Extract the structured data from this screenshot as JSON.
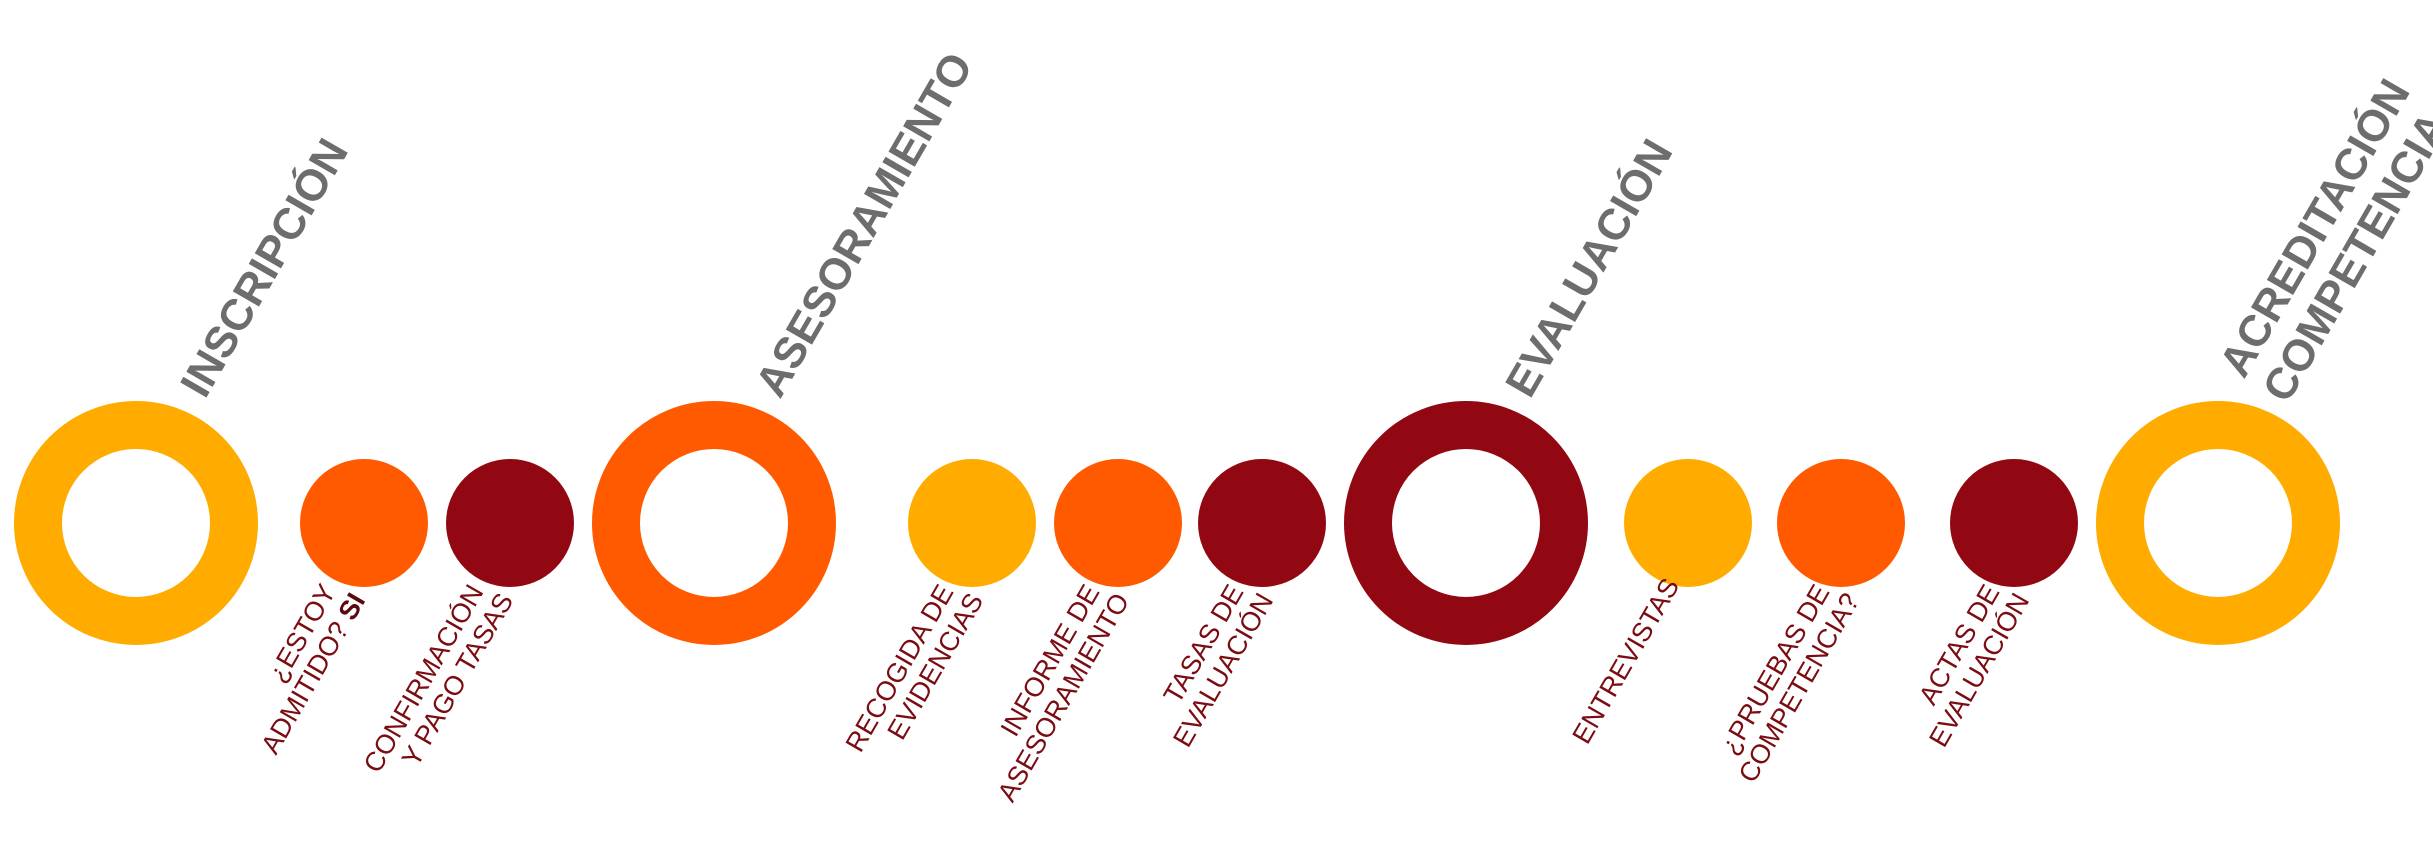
{
  "colors": {
    "yellow": "#ffab00",
    "orange": "#ff5a00",
    "darkred": "#920812",
    "title": "#6d6d6d",
    "label": "#7a0c12"
  },
  "phases": [
    {
      "title": "INSCRIPCIÓN",
      "color": "yellow"
    },
    {
      "title": "ASESORAMIENTO",
      "color": "orange"
    },
    {
      "title": "EVALUACIÓN",
      "color": "darkred"
    },
    {
      "title_lines": [
        "ACREDITACIÓN",
        "COMPETENCIA"
      ],
      "color": "yellow"
    }
  ],
  "steps": [
    {
      "lines": [
        "¿ESTOY",
        "ADMITIDO?"
      ],
      "strong": "SI",
      "color": "orange"
    },
    {
      "lines": [
        "CONFIRMACIÓN",
        "Y PAGO TASAS"
      ],
      "color": "darkred"
    },
    {
      "lines": [
        "RECOGIDA DE",
        "EVIDENCIAS"
      ],
      "color": "yellow"
    },
    {
      "lines": [
        "INFORME DE",
        "ASESORAMIENTO"
      ],
      "color": "orange"
    },
    {
      "lines": [
        "TASAS DE",
        "EVALUACIÓN"
      ],
      "color": "darkred"
    },
    {
      "lines": [
        "ENTREVISTAS"
      ],
      "color": "yellow"
    },
    {
      "lines": [
        "¿PRUEBAS DE",
        "COMPETENCIA?"
      ],
      "color": "orange"
    },
    {
      "lines": [
        "ACTAS DE",
        "EVALUACIÓN"
      ],
      "color": "darkred"
    }
  ]
}
